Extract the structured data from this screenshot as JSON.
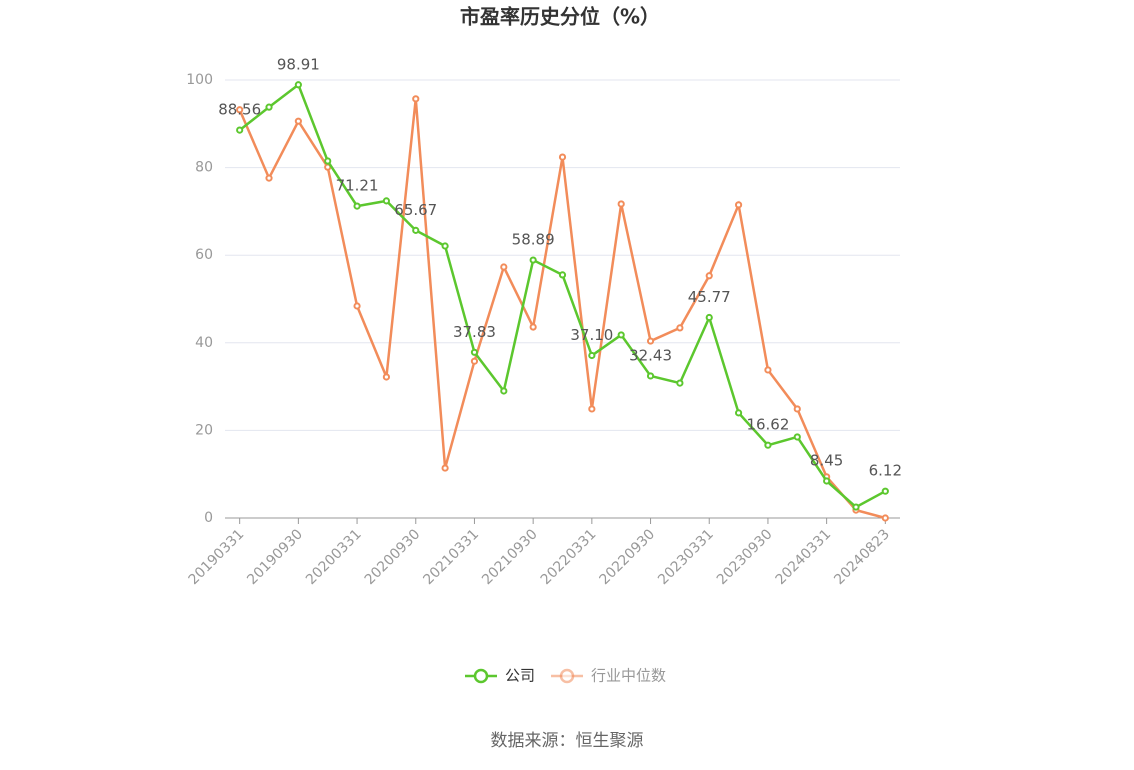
{
  "chart_data": {
    "type": "line",
    "title": "市盈率历史分位（%）",
    "categories": [
      "20190331",
      null,
      "20190930",
      null,
      "20200331",
      null,
      "20200930",
      null,
      "20210331",
      null,
      "20210930",
      null,
      "20220331",
      null,
      "20220930",
      null,
      "20230331",
      null,
      "20230930",
      null,
      "20240331",
      null,
      "20240823"
    ],
    "series": [
      {
        "name": "公司",
        "color": "#5cc72e",
        "values": [
          88.56,
          93.8,
          98.91,
          81.5,
          71.21,
          72.4,
          65.67,
          62.1,
          37.83,
          29.0,
          58.89,
          55.5,
          37.1,
          41.8,
          32.43,
          30.8,
          45.77,
          24.0,
          16.62,
          18.5,
          8.45,
          2.5,
          6.12
        ],
        "value_labels": [
          "88.56",
          null,
          "98.91",
          null,
          "71.21",
          null,
          "65.67",
          null,
          "37.83",
          null,
          "58.89",
          null,
          "37.10",
          null,
          "32.43",
          null,
          "45.77",
          null,
          "16.62",
          null,
          "8.45",
          null,
          "6.12"
        ]
      },
      {
        "name": "行业中位数",
        "color": "#f28c5a",
        "values": [
          93.2,
          77.6,
          90.6,
          80.1,
          48.4,
          32.2,
          95.7,
          11.4,
          35.8,
          57.3,
          43.6,
          82.4,
          24.9,
          71.7,
          40.4,
          43.4,
          55.3,
          71.5,
          33.8,
          24.9,
          9.4,
          1.8,
          0
        ]
      }
    ],
    "ylim": [
      0,
      100
    ],
    "yticks": [
      0,
      20,
      40,
      60,
      80,
      100
    ],
    "grid": true,
    "source": "数据来源：恒生聚源"
  }
}
